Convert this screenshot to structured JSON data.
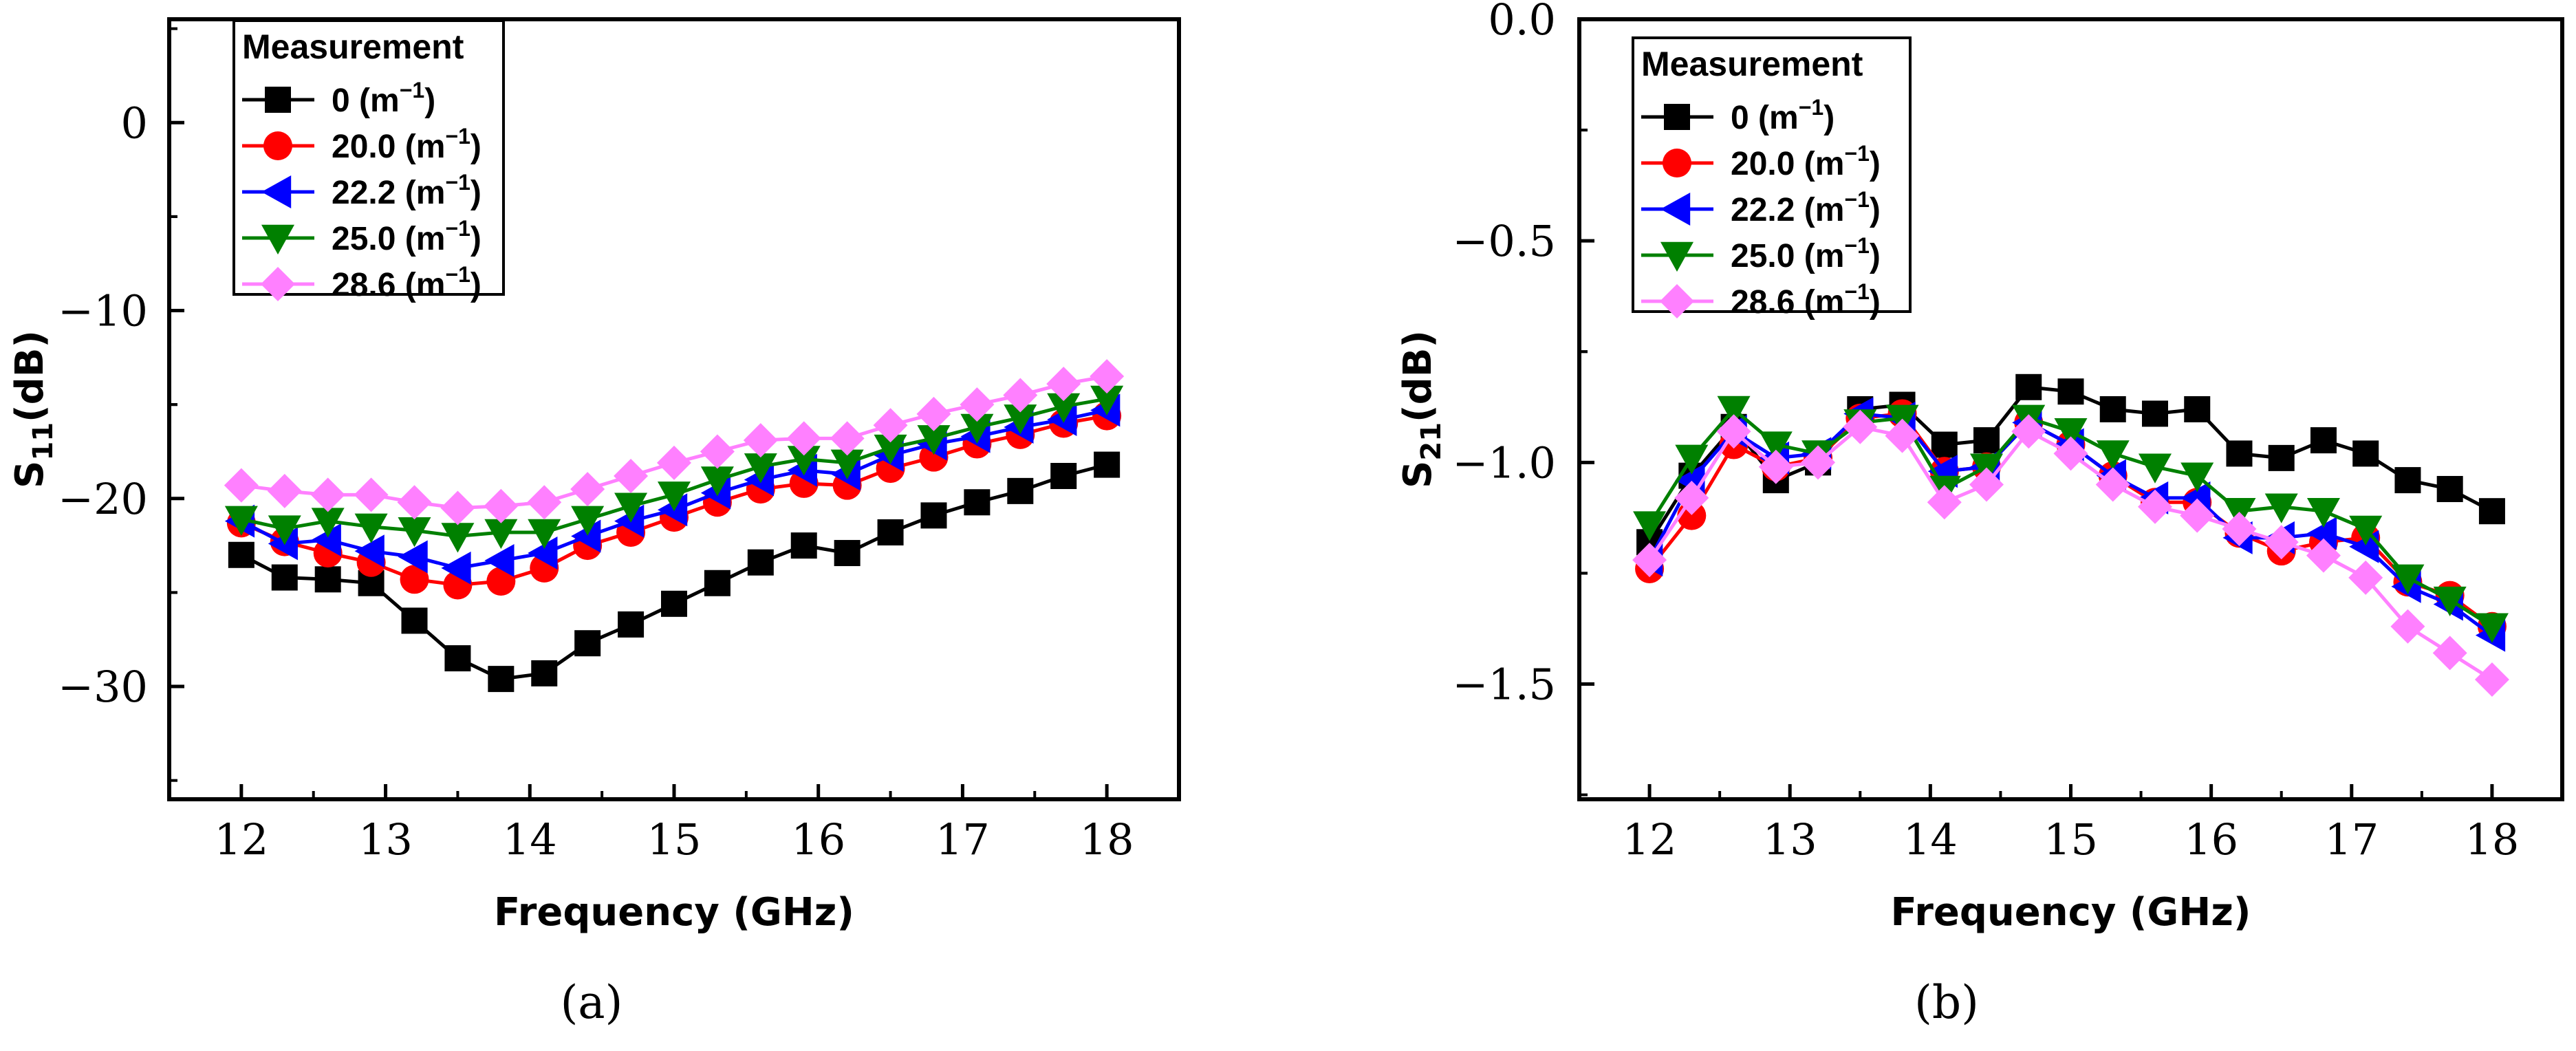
{
  "chart_data": [
    {
      "type": "line",
      "id": "a",
      "caption": "(a)",
      "xlabel": "Frequency (GHz)",
      "ylabel": "S11(dB)",
      "ylabel_main": "S",
      "ylabel_sub": "11",
      "ylabel_unit": "(dB)",
      "xlim": [
        11.5,
        18.5
      ],
      "ylim": [
        -36,
        5.5
      ],
      "xticks": [
        12,
        13,
        14,
        15,
        16,
        17,
        18
      ],
      "xtick_labels": [
        "12",
        "13",
        "14",
        "15",
        "16",
        "17",
        "18"
      ],
      "yticks": [
        0,
        -10,
        -20,
        -30
      ],
      "ytick_labels": [
        "0",
        "−10",
        "−20",
        "−30"
      ],
      "legend_title": "Measurement",
      "legend_position": "top-left",
      "x": [
        12.0,
        12.3,
        12.6,
        12.9,
        13.2,
        13.5,
        13.8,
        14.1,
        14.4,
        14.7,
        15.0,
        15.3,
        15.6,
        15.9,
        16.2,
        16.5,
        16.8,
        17.1,
        17.4,
        17.7,
        18.0
      ],
      "series": [
        {
          "name": "0 (m⁻¹)",
          "label_main": "0 (m",
          "label_sup": "−1",
          "label_end": ")",
          "color": "#000000",
          "marker": "square",
          "values": [
            -23.0,
            -24.2,
            -24.3,
            -24.5,
            -26.5,
            -28.5,
            -29.6,
            -29.3,
            -27.7,
            -26.7,
            -25.6,
            -24.5,
            -23.4,
            -22.5,
            -22.9,
            -21.8,
            -20.9,
            -20.2,
            -19.6,
            -18.8,
            -18.2
          ]
        },
        {
          "name": "20.0 (m⁻¹)",
          "label_main": "20.0 (m",
          "label_sup": "−1",
          "label_end": ")",
          "color": "#ff0000",
          "marker": "circle",
          "values": [
            -21.3,
            -22.3,
            -22.9,
            -23.4,
            -24.3,
            -24.6,
            -24.4,
            -23.7,
            -22.5,
            -21.8,
            -21.0,
            -20.2,
            -19.5,
            -19.2,
            -19.3,
            -18.4,
            -17.8,
            -17.1,
            -16.6,
            -16.0,
            -15.6
          ]
        },
        {
          "name": "22.2 (m⁻¹)",
          "label_main": "22.2 (m",
          "label_sup": "−1",
          "label_end": ")",
          "color": "#0000ff",
          "marker": "triangle-left",
          "values": [
            -21.2,
            -22.4,
            -22.2,
            -22.8,
            -23.1,
            -23.7,
            -23.3,
            -22.9,
            -22.0,
            -21.2,
            -20.6,
            -19.7,
            -19.0,
            -18.5,
            -18.7,
            -17.7,
            -17.1,
            -16.7,
            -16.2,
            -15.8,
            -15.3
          ]
        },
        {
          "name": "25.0 (m⁻¹)",
          "label_main": "25.0 (m",
          "label_sup": "−1",
          "label_end": ")",
          "color": "#008000",
          "marker": "triangle-down",
          "values": [
            -21.1,
            -21.6,
            -21.2,
            -21.5,
            -21.7,
            -22.0,
            -21.8,
            -21.8,
            -21.1,
            -20.4,
            -19.8,
            -19.0,
            -18.3,
            -17.9,
            -18.1,
            -17.3,
            -16.8,
            -16.2,
            -15.7,
            -15.1,
            -14.7
          ]
        },
        {
          "name": "28.6 (m⁻¹)",
          "label_main": "28.6 (m",
          "label_sup": "−1",
          "label_end": ")",
          "color": "#ff80ff",
          "marker": "diamond",
          "values": [
            -19.3,
            -19.6,
            -19.8,
            -19.8,
            -20.2,
            -20.5,
            -20.4,
            -20.2,
            -19.5,
            -18.8,
            -18.1,
            -17.5,
            -16.9,
            -16.8,
            -16.8,
            -16.1,
            -15.5,
            -15.0,
            -14.5,
            -13.9,
            -13.5
          ]
        }
      ]
    },
    {
      "type": "line",
      "id": "b",
      "caption": "(b)",
      "xlabel": "Frequency (GHz)",
      "ylabel": "S21(dB)",
      "ylabel_main": "S",
      "ylabel_sub": "21",
      "ylabel_unit": "(dB)",
      "xlim": [
        11.5,
        18.5
      ],
      "ylim": [
        -1.76,
        0.0
      ],
      "xticks": [
        12,
        13,
        14,
        15,
        16,
        17,
        18
      ],
      "xtick_labels": [
        "12",
        "13",
        "14",
        "15",
        "16",
        "17",
        "18"
      ],
      "yticks": [
        0.0,
        -0.5,
        -1.0,
        -1.5
      ],
      "ytick_labels": [
        "0.0",
        "−0.5",
        "−1.0",
        "−1.5"
      ],
      "legend_title": "Measurement",
      "legend_position": "top-left",
      "x": [
        12.0,
        12.3,
        12.6,
        12.9,
        13.2,
        13.5,
        13.8,
        14.1,
        14.4,
        14.7,
        15.0,
        15.3,
        15.6,
        15.9,
        16.2,
        16.5,
        16.8,
        17.1,
        17.4,
        17.7,
        18.0
      ],
      "series": [
        {
          "name": "0 (m⁻¹)",
          "label_main": "0 (m",
          "label_sup": "−1",
          "label_end": ")",
          "color": "#000000",
          "marker": "square",
          "values": [
            -1.18,
            -1.03,
            -0.92,
            -1.04,
            -1.0,
            -0.88,
            -0.87,
            -0.96,
            -0.95,
            -0.83,
            -0.84,
            -0.88,
            -0.89,
            -0.88,
            -0.98,
            -0.99,
            -0.95,
            -0.98,
            -1.04,
            -1.06,
            -1.11
          ]
        },
        {
          "name": "20.0 (m⁻¹)",
          "label_main": "20.0 (m",
          "label_sup": "−1",
          "label_end": ")",
          "color": "#ff0000",
          "marker": "circle",
          "values": [
            -1.24,
            -1.12,
            -0.96,
            -1.01,
            -0.99,
            -0.9,
            -0.89,
            -1.02,
            -1.01,
            -0.91,
            -0.96,
            -1.03,
            -1.09,
            -1.09,
            -1.16,
            -1.2,
            -1.18,
            -1.17,
            -1.27,
            -1.3,
            -1.37
          ]
        },
        {
          "name": "22.2 (m⁻¹)",
          "label_main": "22.2 (m",
          "label_sup": "−1",
          "label_end": ")",
          "color": "#0000ff",
          "marker": "triangle-left",
          "values": [
            -1.22,
            -1.04,
            -0.93,
            -0.99,
            -0.98,
            -0.89,
            -0.9,
            -1.02,
            -1.01,
            -0.91,
            -0.96,
            -1.03,
            -1.08,
            -1.08,
            -1.17,
            -1.17,
            -1.16,
            -1.19,
            -1.28,
            -1.32,
            -1.39
          ]
        },
        {
          "name": "25.0 (m⁻¹)",
          "label_main": "25.0 (m",
          "label_sup": "−1",
          "label_end": ")",
          "color": "#008000",
          "marker": "triangle-down",
          "values": [
            -1.14,
            -0.99,
            -0.88,
            -0.96,
            -0.98,
            -0.91,
            -0.9,
            -1.06,
            -1.01,
            -0.9,
            -0.93,
            -0.98,
            -1.01,
            -1.03,
            -1.11,
            -1.1,
            -1.11,
            -1.15,
            -1.26,
            -1.31,
            -1.37
          ]
        },
        {
          "name": "28.6 (m⁻¹)",
          "label_main": "28.6 (m",
          "label_sup": "−1",
          "label_end": ")",
          "color": "#ff80ff",
          "marker": "diamond",
          "values": [
            -1.22,
            -1.08,
            -0.93,
            -1.01,
            -1.0,
            -0.92,
            -0.94,
            -1.09,
            -1.05,
            -0.93,
            -0.98,
            -1.05,
            -1.1,
            -1.12,
            -1.15,
            -1.18,
            -1.21,
            -1.26,
            -1.37,
            -1.43,
            -1.49
          ]
        }
      ]
    }
  ]
}
